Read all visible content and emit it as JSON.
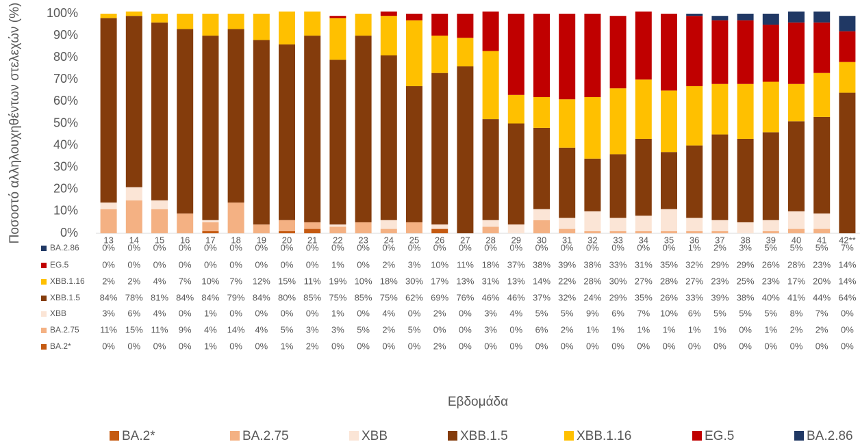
{
  "chart_data": {
    "type": "stacked-bar",
    "y_label": "Ποσοστό αλληλουχηθέντων στελεχών (%)",
    "x_label": "Εβδομάδα",
    "categories": [
      "13",
      "14",
      "15",
      "16",
      "17",
      "18",
      "19",
      "20",
      "21",
      "22",
      "23",
      "24",
      "25",
      "26",
      "27",
      "28",
      "29",
      "30",
      "31",
      "32",
      "33",
      "34",
      "35",
      "36",
      "37",
      "38",
      "39",
      "40",
      "41",
      "42**"
    ],
    "ylim": [
      0,
      100
    ],
    "yticks": [
      {
        "value": 0,
        "label": "0%"
      },
      {
        "value": 10,
        "label": "10%"
      },
      {
        "value": 20,
        "label": "20%"
      },
      {
        "value": 30,
        "label": "30%"
      },
      {
        "value": 40,
        "label": "40%"
      },
      {
        "value": 50,
        "label": "50%"
      },
      {
        "value": 60,
        "label": "60%"
      },
      {
        "value": 70,
        "label": "70%"
      },
      {
        "value": 80,
        "label": "80%"
      },
      {
        "value": 90,
        "label": "90%"
      },
      {
        "value": 100,
        "label": "100%"
      }
    ],
    "series": [
      {
        "name": "BA.2*",
        "color": "#c55a11",
        "values": [
          0,
          0,
          0,
          0,
          1,
          0,
          0,
          1,
          2,
          0,
          0,
          0,
          0,
          2,
          0,
          0,
          0,
          0,
          0,
          0,
          0,
          0,
          0,
          0,
          0,
          0,
          0,
          0,
          0,
          0
        ],
        "value_labels": [
          "0%",
          "0%",
          "0%",
          "0%",
          "1%",
          "0%",
          "0%",
          "1%",
          "2%",
          "0%",
          "0%",
          "0%",
          "0%",
          "2%",
          "0%",
          "0%",
          "0%",
          "0%",
          "0%",
          "0%",
          "0%",
          "0%",
          "0%",
          "0%",
          "0%",
          "0%",
          "0%",
          "0%",
          "0%",
          "0%"
        ]
      },
      {
        "name": "BA.2.75",
        "color": "#f4b183",
        "values": [
          11,
          15,
          11,
          9,
          4,
          14,
          4,
          5,
          3,
          3,
          5,
          2,
          5,
          0,
          0,
          3,
          0,
          6,
          2,
          1,
          1,
          1,
          1,
          1,
          1,
          0,
          1,
          2,
          2,
          0
        ],
        "value_labels": [
          "11%",
          "15%",
          "11%",
          "9%",
          "4%",
          "14%",
          "4%",
          "5%",
          "3%",
          "3%",
          "5%",
          "2%",
          "5%",
          "0%",
          "0%",
          "3%",
          "0%",
          "6%",
          "2%",
          "1%",
          "1%",
          "1%",
          "1%",
          "1%",
          "1%",
          "0%",
          "1%",
          "2%",
          "2%",
          "0%"
        ]
      },
      {
        "name": "XBB",
        "color": "#fbe5d6",
        "values": [
          3,
          6,
          4,
          0,
          1,
          0,
          0,
          0,
          0,
          1,
          0,
          4,
          0,
          2,
          0,
          3,
          4,
          5,
          5,
          9,
          6,
          7,
          10,
          6,
          5,
          5,
          5,
          8,
          7,
          0
        ],
        "value_labels": [
          "3%",
          "6%",
          "4%",
          "0%",
          "1%",
          "0%",
          "0%",
          "0%",
          "0%",
          "1%",
          "0%",
          "4%",
          "0%",
          "2%",
          "0%",
          "3%",
          "4%",
          "5%",
          "5%",
          "9%",
          "6%",
          "7%",
          "10%",
          "6%",
          "5%",
          "5%",
          "5%",
          "8%",
          "7%",
          "0%"
        ]
      },
      {
        "name": "XBB.1.5",
        "color": "#843c0c",
        "values": [
          84,
          78,
          81,
          84,
          84,
          79,
          84,
          80,
          85,
          75,
          85,
          75,
          62,
          69,
          76,
          46,
          46,
          37,
          32,
          24,
          29,
          35,
          26,
          33,
          39,
          38,
          40,
          41,
          44,
          64
        ],
        "value_labels": [
          "84%",
          "78%",
          "81%",
          "84%",
          "84%",
          "79%",
          "84%",
          "80%",
          "85%",
          "75%",
          "85%",
          "75%",
          "62%",
          "69%",
          "76%",
          "46%",
          "46%",
          "37%",
          "32%",
          "24%",
          "29%",
          "35%",
          "26%",
          "33%",
          "39%",
          "38%",
          "40%",
          "41%",
          "44%",
          "64%"
        ]
      },
      {
        "name": "XBB.1.16",
        "color": "#ffc000",
        "values": [
          2,
          2,
          4,
          7,
          10,
          7,
          12,
          15,
          11,
          19,
          10,
          18,
          30,
          17,
          13,
          31,
          13,
          14,
          22,
          28,
          30,
          27,
          28,
          27,
          23,
          25,
          23,
          17,
          20,
          14
        ],
        "value_labels": [
          "2%",
          "2%",
          "4%",
          "7%",
          "10%",
          "7%",
          "12%",
          "15%",
          "11%",
          "19%",
          "10%",
          "18%",
          "30%",
          "17%",
          "13%",
          "31%",
          "13%",
          "14%",
          "22%",
          "28%",
          "30%",
          "27%",
          "28%",
          "27%",
          "23%",
          "25%",
          "23%",
          "17%",
          "20%",
          "14%"
        ]
      },
      {
        "name": "EG.5",
        "color": "#c00000",
        "values": [
          0,
          0,
          0,
          0,
          0,
          0,
          0,
          0,
          0,
          1,
          0,
          2,
          3,
          10,
          11,
          18,
          37,
          38,
          39,
          38,
          33,
          31,
          35,
          32,
          29,
          29,
          26,
          28,
          23,
          14
        ],
        "value_labels": [
          "0%",
          "0%",
          "0%",
          "0%",
          "0%",
          "0%",
          "0%",
          "0%",
          "0%",
          "1%",
          "0%",
          "2%",
          "3%",
          "10%",
          "11%",
          "18%",
          "37%",
          "38%",
          "39%",
          "38%",
          "33%",
          "31%",
          "35%",
          "32%",
          "29%",
          "29%",
          "26%",
          "28%",
          "23%",
          "14%"
        ]
      },
      {
        "name": "BA.2.86",
        "color": "#203864",
        "values": [
          0,
          0,
          0,
          0,
          0,
          0,
          0,
          0,
          0,
          0,
          0,
          0,
          0,
          0,
          0,
          0,
          0,
          0,
          0,
          0,
          0,
          0,
          0,
          1,
          2,
          3,
          5,
          5,
          5,
          7
        ],
        "value_labels": [
          "0%",
          "0%",
          "0%",
          "0%",
          "0%",
          "0%",
          "0%",
          "0%",
          "0%",
          "0%",
          "0%",
          "0%",
          "0%",
          "0%",
          "0%",
          "0%",
          "0%",
          "0%",
          "0%",
          "0%",
          "0%",
          "0%",
          "0%",
          "1%",
          "2%",
          "3%",
          "5%",
          "5%",
          "5%",
          "7%"
        ]
      }
    ]
  }
}
